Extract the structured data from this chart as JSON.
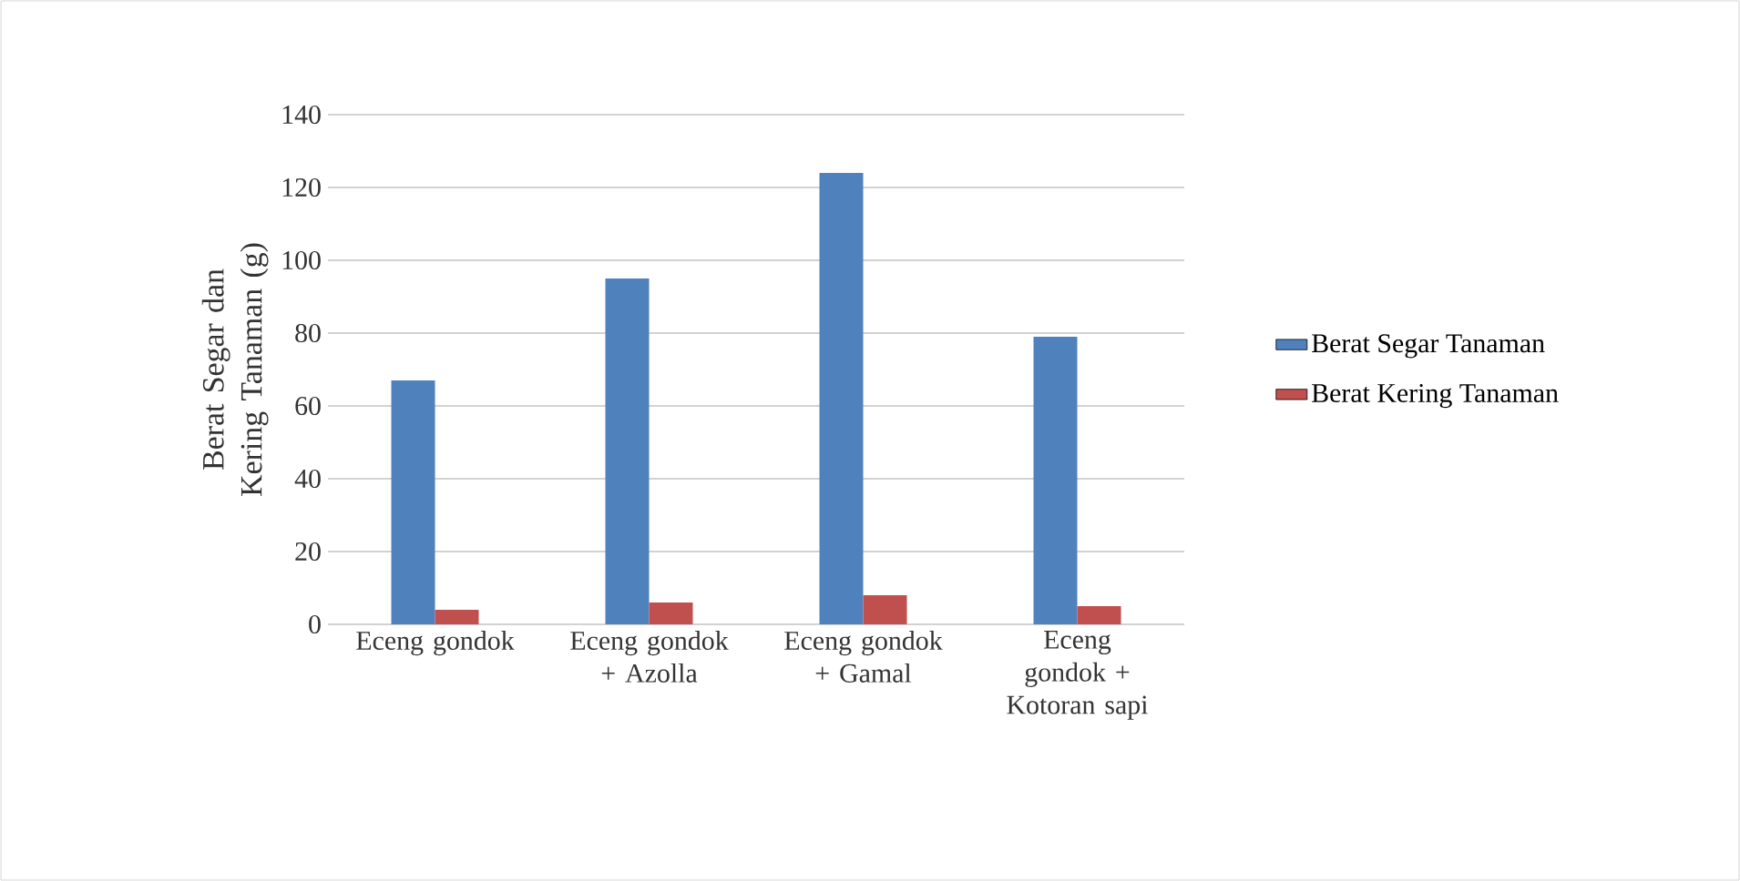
{
  "chart_data": {
    "type": "bar",
    "ylabel": "Berat Segar dan Kering Tanaman (g)",
    "categories": [
      "Eceng gondok",
      "Eceng gondok + Azolla",
      "Eceng gondok + Gamal",
      "Eceng gondok + Kotoran sapi"
    ],
    "series": [
      {
        "name": "Berat Segar Tanaman",
        "color": "#4f81bd",
        "values": [
          67,
          95,
          124,
          79
        ]
      },
      {
        "name": "Berat Kering Tanaman",
        "color": "#c0504d",
        "values": [
          4,
          6,
          8,
          5
        ]
      }
    ],
    "ylim": [
      0,
      140
    ],
    "yticks": [
      0,
      20,
      40,
      60,
      80,
      100,
      120,
      140
    ],
    "grid": true,
    "legend": "right"
  }
}
